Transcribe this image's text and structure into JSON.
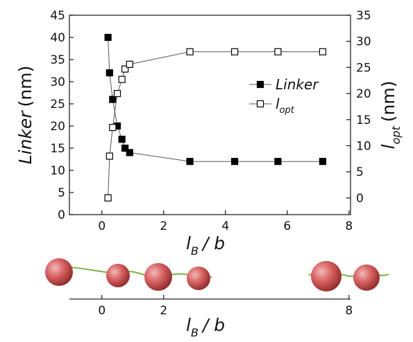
{
  "chart_data": {
    "type": "line",
    "x": [
      0.2,
      0.25,
      0.35,
      0.5,
      0.65,
      0.75,
      0.9,
      2.85,
      4.3,
      5.7,
      7.15
    ],
    "series": [
      {
        "name": "Linker",
        "color": "#000000",
        "marker": "square",
        "filled": true,
        "axis": "y",
        "values": [
          40,
          32,
          26,
          20,
          17,
          15,
          14,
          12,
          12,
          12,
          12
        ]
      },
      {
        "name": "l",
        "name_sub": "opt",
        "color": "#000000",
        "marker": "square",
        "filled": false,
        "axis": "y2",
        "values": [
          0,
          8,
          13.5,
          20,
          22.7,
          24.7,
          25.6,
          28,
          28,
          28,
          28
        ]
      }
    ],
    "xlim": [
      -1.05,
      8.05
    ],
    "xticks": [
      0,
      2,
      4,
      6,
      8
    ],
    "ylim": [
      0,
      45
    ],
    "yticks": [
      0,
      5,
      10,
      15,
      20,
      25,
      30,
      35,
      40,
      45
    ],
    "y2lim": [
      -3.2,
      35
    ],
    "y2ticks": [
      0,
      5,
      10,
      15,
      20,
      25,
      30,
      35
    ],
    "ylabel": {
      "main": "Linker",
      "unit": "(nm)"
    },
    "y2label": {
      "main": "l",
      "sub": "opt",
      "unit": "(nm)"
    },
    "xlabel": {
      "main": "l",
      "sub": "B",
      "rest": "/ b"
    },
    "legend": "upper right"
  },
  "illustration": {
    "xticks": [
      0,
      2,
      8
    ],
    "xlabel": {
      "main": "l",
      "sub": "B",
      "rest": "/ b"
    }
  }
}
